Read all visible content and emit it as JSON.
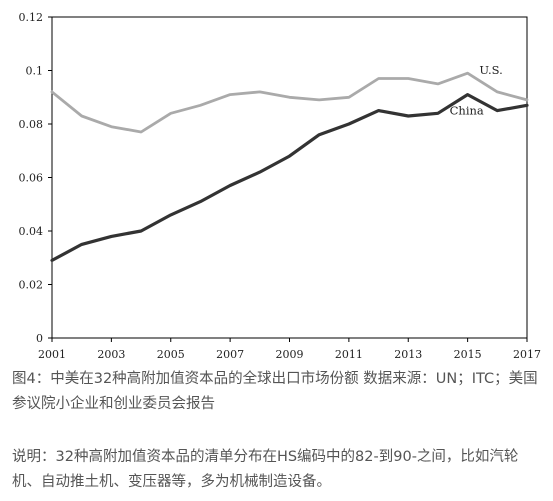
{
  "chart_data": {
    "type": "line",
    "x": [
      2001,
      2002,
      2003,
      2004,
      2005,
      2006,
      2007,
      2008,
      2009,
      2010,
      2011,
      2012,
      2013,
      2014,
      2015,
      2016,
      2017
    ],
    "x_tick_labels": [
      "2001",
      "2003",
      "2005",
      "2007",
      "2009",
      "2011",
      "2013",
      "2015",
      "2017"
    ],
    "y_tick_labels": [
      "0",
      "0.02",
      "0.04",
      "0.06",
      "0.08",
      "0.1",
      "0.12"
    ],
    "ylim": [
      0,
      0.12
    ],
    "xlim": [
      2001,
      2017
    ],
    "grid": false,
    "series": [
      {
        "name": "U.S.",
        "color": "#aaaaaa",
        "values": [
          0.092,
          0.083,
          0.079,
          0.077,
          0.084,
          0.087,
          0.091,
          0.092,
          0.09,
          0.089,
          0.09,
          0.097,
          0.097,
          0.095,
          0.099,
          0.092,
          0.089
        ]
      },
      {
        "name": "China",
        "color": "#333333",
        "values": [
          0.029,
          0.035,
          0.038,
          0.04,
          0.046,
          0.051,
          0.057,
          0.062,
          0.068,
          0.076,
          0.08,
          0.085,
          0.083,
          0.084,
          0.091,
          0.085,
          0.087
        ]
      }
    ]
  },
  "captions": {
    "figure": "图4：中美在32种高附加值资本品的全球出口市场份额  数据来源：UN；ITC；美国参议院小企业和创业委员会报告",
    "note": "说明：32种高附加值资本品的清单分布在HS编码中的82-到90-之间，比如汽轮机、自动推土机、变压器等，多为机械制造设备。"
  }
}
